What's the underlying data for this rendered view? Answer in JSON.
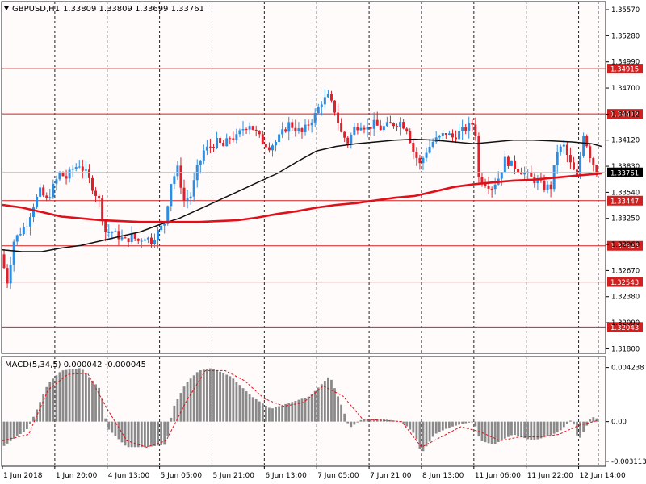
{
  "header": {
    "symbol_label": "GBPUSD,H1",
    "ohlc_label": "1.33809 1.33809 1.33699 1.33761",
    "macd_label": "MACD(5,34,5) 0.000042 -0.000045"
  },
  "colors": {
    "background": "#fffbfb",
    "grid": "#222222",
    "bull_candle": "#2e8de0",
    "bear_candle": "#e0202a",
    "ma_fast": "#e0101a",
    "ma_slow": "#111111",
    "level_line": "#d02020",
    "macd_hist": "#8a8a8a",
    "macd_signal": "#e0101a"
  },
  "chart_data": [
    {
      "type": "candlestick",
      "symbol": "GBPUSD",
      "timeframe": "H1",
      "title": "GBPUSD,H1",
      "ohlc_last": {
        "open": 1.33809,
        "high": 1.33809,
        "low": 1.33699,
        "close": 1.33761
      },
      "current_price": 1.33761,
      "ylim": [
        1.3175,
        1.3566
      ],
      "yticks": [
        1.3557,
        1.3528,
        1.3499,
        1.347,
        1.3441,
        1.3412,
        1.3383,
        1.3354,
        1.3325,
        1.3296,
        1.3267,
        1.3238,
        1.3209,
        1.318
      ],
      "ytick_labels": [
        "1.35570",
        "1.35280",
        "1.34990",
        "1.34700",
        "1.34412",
        "1.34120",
        "1.33830",
        "1.33540",
        "1.33250",
        "1.32960",
        "1.32670",
        "1.32380",
        "1.32090",
        "1.31800"
      ],
      "x_labels": [
        "1 Jun 2018",
        "1 Jun 20:00",
        "4 Jun 13:00",
        "5 Jun 05:00",
        "5 Jun 21:00",
        "6 Jun 13:00",
        "7 Jun 05:00",
        "7 Jun 21:00",
        "8 Jun 13:00",
        "11 Jun 06:00",
        "11 Jun 22:00",
        "12 Jun 14:00"
      ],
      "x_label_positions": [
        0,
        16,
        32,
        48,
        64,
        80,
        96,
        112,
        128,
        144,
        160,
        176
      ],
      "levels": [
        1.34915,
        1.34412,
        1.33447,
        1.32945,
        1.32543,
        1.32043
      ],
      "level_labels": [
        "1.34915",
        "1.34412",
        "1.33447",
        "1.32945",
        "1.32543",
        "1.32043"
      ],
      "price_path": [
        [
          0,
          1.3285
        ],
        [
          2,
          1.3255
        ],
        [
          4,
          1.33
        ],
        [
          6,
          1.331
        ],
        [
          8,
          1.332
        ],
        [
          10,
          1.334
        ],
        [
          12,
          1.3355
        ],
        [
          14,
          1.3345
        ],
        [
          16,
          1.336
        ],
        [
          18,
          1.3375
        ],
        [
          20,
          1.337
        ],
        [
          22,
          1.338
        ],
        [
          24,
          1.3385
        ],
        [
          26,
          1.3375
        ],
        [
          28,
          1.336
        ],
        [
          30,
          1.3345
        ],
        [
          32,
          1.331
        ],
        [
          34,
          1.331
        ],
        [
          36,
          1.3305
        ],
        [
          38,
          1.33
        ],
        [
          40,
          1.3305
        ],
        [
          42,
          1.33
        ],
        [
          44,
          1.3305
        ],
        [
          46,
          1.33
        ],
        [
          48,
          1.331
        ],
        [
          50,
          1.332
        ],
        [
          52,
          1.3365
        ],
        [
          54,
          1.338
        ],
        [
          56,
          1.3345
        ],
        [
          58,
          1.335
        ],
        [
          60,
          1.338
        ],
        [
          62,
          1.34
        ],
        [
          64,
          1.3405
        ],
        [
          66,
          1.341
        ],
        [
          68,
          1.3405
        ],
        [
          70,
          1.3415
        ],
        [
          72,
          1.3415
        ],
        [
          74,
          1.3425
        ],
        [
          76,
          1.343
        ],
        [
          78,
          1.342
        ],
        [
          80,
          1.341
        ],
        [
          82,
          1.3405
        ],
        [
          84,
          1.341
        ],
        [
          86,
          1.342
        ],
        [
          88,
          1.343
        ],
        [
          90,
          1.3425
        ],
        [
          92,
          1.342
        ],
        [
          94,
          1.343
        ],
        [
          96,
          1.344
        ],
        [
          98,
          1.3455
        ],
        [
          100,
          1.346
        ],
        [
          102,
          1.3445
        ],
        [
          104,
          1.342
        ],
        [
          106,
          1.341
        ],
        [
          108,
          1.3425
        ],
        [
          110,
          1.343
        ],
        [
          112,
          1.3425
        ],
        [
          114,
          1.343
        ],
        [
          116,
          1.3425
        ],
        [
          118,
          1.3428
        ],
        [
          120,
          1.343
        ],
        [
          122,
          1.3432
        ],
        [
          124,
          1.3425
        ],
        [
          126,
          1.34
        ],
        [
          128,
          1.3385
        ],
        [
          130,
          1.34
        ],
        [
          132,
          1.341
        ],
        [
          134,
          1.3415
        ],
        [
          136,
          1.342
        ],
        [
          138,
          1.3415
        ],
        [
          140,
          1.342
        ],
        [
          142,
          1.3425
        ],
        [
          144,
          1.343
        ],
        [
          145,
          1.342
        ],
        [
          146,
          1.337
        ],
        [
          148,
          1.3365
        ],
        [
          150,
          1.336
        ],
        [
          152,
          1.337
        ],
        [
          154,
          1.339
        ],
        [
          156,
          1.3385
        ],
        [
          158,
          1.338
        ],
        [
          160,
          1.3375
        ],
        [
          162,
          1.337
        ],
        [
          164,
          1.3365
        ],
        [
          166,
          1.336
        ],
        [
          168,
          1.336
        ],
        [
          170,
          1.34
        ],
        [
          172,
          1.3405
        ],
        [
          174,
          1.3385
        ],
        [
          176,
          1.337
        ],
        [
          178,
          1.342
        ],
        [
          180,
          1.3395
        ],
        [
          182,
          1.3376
        ]
      ],
      "series": [
        {
          "kind": "moving-average-slow",
          "x": [
            0,
            6,
            12,
            18,
            24,
            30,
            36,
            42,
            48,
            54,
            60,
            66,
            72,
            78,
            84,
            90,
            96,
            102,
            108,
            114,
            120,
            126,
            132,
            138,
            144,
            150,
            156,
            162,
            168,
            174,
            180,
            183
          ],
          "y": [
            1.329,
            1.3288,
            1.3288,
            1.3292,
            1.3295,
            1.33,
            1.3305,
            1.331,
            1.3318,
            1.3325,
            1.3335,
            1.3345,
            1.3355,
            1.3365,
            1.3375,
            1.3388,
            1.34,
            1.3405,
            1.3408,
            1.341,
            1.3412,
            1.3413,
            1.3412,
            1.341,
            1.3408,
            1.341,
            1.3412,
            1.3412,
            1.3411,
            1.341,
            1.3408,
            1.3405
          ]
        },
        {
          "kind": "moving-average-fast",
          "x": [
            0,
            6,
            12,
            18,
            24,
            30,
            36,
            42,
            48,
            54,
            60,
            66,
            72,
            78,
            84,
            90,
            96,
            102,
            108,
            114,
            120,
            126,
            132,
            138,
            144,
            150,
            156,
            162,
            168,
            174,
            180,
            183
          ],
          "y": [
            1.334,
            1.3337,
            1.3332,
            1.3327,
            1.3325,
            1.3323,
            1.3322,
            1.3321,
            1.3321,
            1.3321,
            1.3321,
            1.3322,
            1.3323,
            1.3326,
            1.333,
            1.3333,
            1.3337,
            1.334,
            1.3342,
            1.3345,
            1.3348,
            1.335,
            1.3355,
            1.336,
            1.3363,
            1.3365,
            1.3367,
            1.3368,
            1.337,
            1.3372,
            1.3374,
            1.3375
          ]
        }
      ]
    },
    {
      "type": "bar",
      "title": "MACD(5,34,5) 0.000042 -0.000045",
      "ylim": [
        -0.0035,
        0.0051
      ],
      "yticks": [
        0.004238,
        0.0,
        -0.003113
      ],
      "ytick_labels": [
        "0.004238",
        "0.00",
        "-0.003113"
      ],
      "x": [
        0,
        8,
        14,
        18,
        24,
        30,
        32,
        38,
        44,
        50,
        52,
        56,
        60,
        64,
        70,
        76,
        82,
        88,
        94,
        100,
        104,
        106,
        110,
        116,
        122,
        126,
        128,
        132,
        136,
        140,
        144,
        146,
        150,
        156,
        162,
        166,
        170,
        174,
        176,
        180,
        182
      ],
      "values": [
        -0.002,
        -0.0005,
        0.003,
        0.004,
        0.0042,
        0.0025,
        -0.0005,
        -0.002,
        -0.002,
        -0.0018,
        0.001,
        0.003,
        0.004,
        0.0042,
        0.0035,
        0.002,
        0.001,
        0.0015,
        0.002,
        0.0036,
        0.001,
        -0.0005,
        0.0002,
        0.0002,
        0.0,
        -0.001,
        -0.0025,
        -0.001,
        -0.0005,
        -0.0002,
        0.0,
        -0.0015,
        -0.0018,
        -0.001,
        -0.0015,
        -0.0012,
        -0.0008,
        0.0002,
        -0.0015,
        0.0004,
        0.0002
      ],
      "signal_x": [
        0,
        8,
        14,
        20,
        26,
        32,
        38,
        44,
        50,
        56,
        62,
        68,
        74,
        80,
        86,
        92,
        98,
        104,
        110,
        116,
        122,
        128,
        134,
        140,
        146,
        152,
        158,
        164,
        170,
        176,
        182
      ],
      "signal_y": [
        -0.0015,
        -0.001,
        0.0025,
        0.0037,
        0.0038,
        0.001,
        -0.0015,
        -0.002,
        -0.0015,
        0.0015,
        0.004,
        0.004,
        0.0032,
        0.0018,
        0.0012,
        0.0015,
        0.0028,
        0.002,
        0.0002,
        0.0001,
        0.0,
        -0.002,
        -0.0012,
        -0.0004,
        -0.0008,
        -0.0015,
        -0.0012,
        -0.0012,
        -0.001,
        -0.0003,
        0.0001
      ]
    }
  ]
}
